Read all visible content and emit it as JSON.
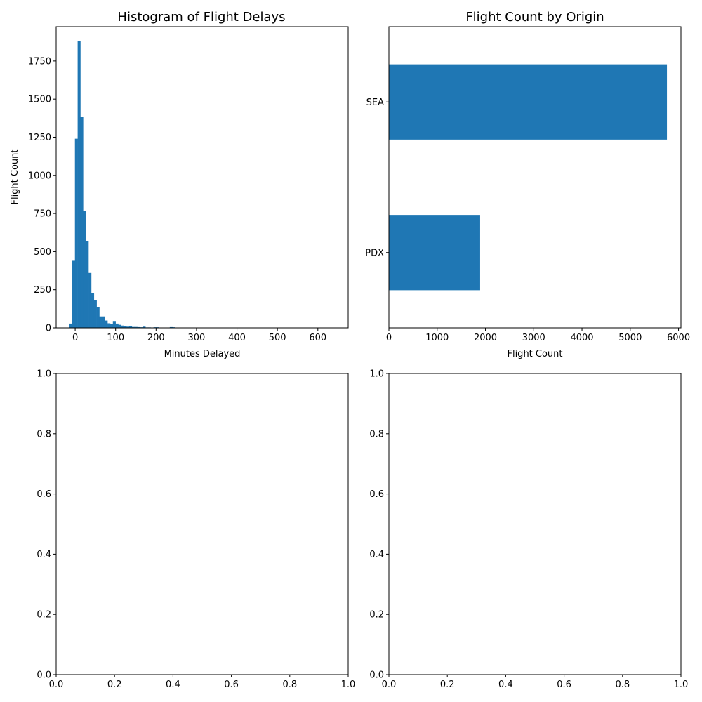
{
  "chart_data": [
    {
      "type": "bar",
      "variant": "histogram",
      "title": "Histogram of Flight Delays",
      "xlabel": "Minutes Delayed",
      "ylabel": "Flight Count",
      "xlim": [
        -47,
        675
      ],
      "ylim": [
        0,
        1975
      ],
      "xticks": [
        0,
        100,
        200,
        300,
        400,
        500,
        600
      ],
      "yticks": [
        0,
        250,
        500,
        750,
        1000,
        1250,
        1500,
        1750
      ],
      "bin_width": 6.7,
      "bin_start": -14,
      "counts": [
        28,
        440,
        1240,
        1880,
        1385,
        765,
        570,
        360,
        230,
        180,
        135,
        75,
        75,
        48,
        30,
        25,
        45,
        28,
        20,
        15,
        12,
        8,
        12,
        6,
        6,
        5,
        4,
        8,
        3,
        3,
        2,
        4,
        4,
        2,
        2,
        2,
        1,
        5,
        4,
        1,
        1,
        1,
        1,
        1,
        0,
        1,
        1,
        1,
        1,
        1,
        1,
        1,
        0,
        0,
        0,
        0,
        0,
        0,
        0,
        0,
        0,
        0,
        0,
        0,
        0,
        0,
        0,
        0,
        0,
        0,
        0,
        0,
        0,
        0,
        0,
        0,
        0,
        0,
        0,
        0,
        0,
        0,
        0,
        0,
        0,
        0,
        0,
        0,
        0,
        0,
        0,
        0,
        0,
        0,
        0,
        0,
        0,
        0,
        0,
        0
      ],
      "color": "#1f77b4",
      "grid": false,
      "legend": "none"
    },
    {
      "type": "bar",
      "orientation": "horizontal",
      "title": "Flight Count by Origin",
      "xlabel": "Flight Count",
      "ylabel": "",
      "categories": [
        "PDX",
        "SEA"
      ],
      "values": [
        1890,
        5760
      ],
      "xlim": [
        0,
        6050
      ],
      "xticks": [
        0,
        1000,
        2000,
        3000,
        4000,
        5000,
        6000
      ],
      "color": "#1f77b4",
      "grid": false,
      "legend": "none"
    },
    {
      "type": "scatter",
      "title": "",
      "xlabel": "",
      "ylabel": "",
      "xlim": [
        0,
        1
      ],
      "ylim": [
        0,
        1
      ],
      "xticks": [
        "0.0",
        "0.2",
        "0.4",
        "0.6",
        "0.8",
        "1.0"
      ],
      "yticks": [
        "0.0",
        "0.2",
        "0.4",
        "0.6",
        "0.8",
        "1.0"
      ],
      "series": []
    },
    {
      "type": "scatter",
      "title": "",
      "xlabel": "",
      "ylabel": "",
      "xlim": [
        0,
        1
      ],
      "ylim": [
        0,
        1
      ],
      "xticks": [
        "0.0",
        "0.2",
        "0.4",
        "0.6",
        "0.8",
        "1.0"
      ],
      "yticks": [
        "0.0",
        "0.2",
        "0.4",
        "0.6",
        "0.8",
        "1.0"
      ],
      "series": []
    }
  ]
}
